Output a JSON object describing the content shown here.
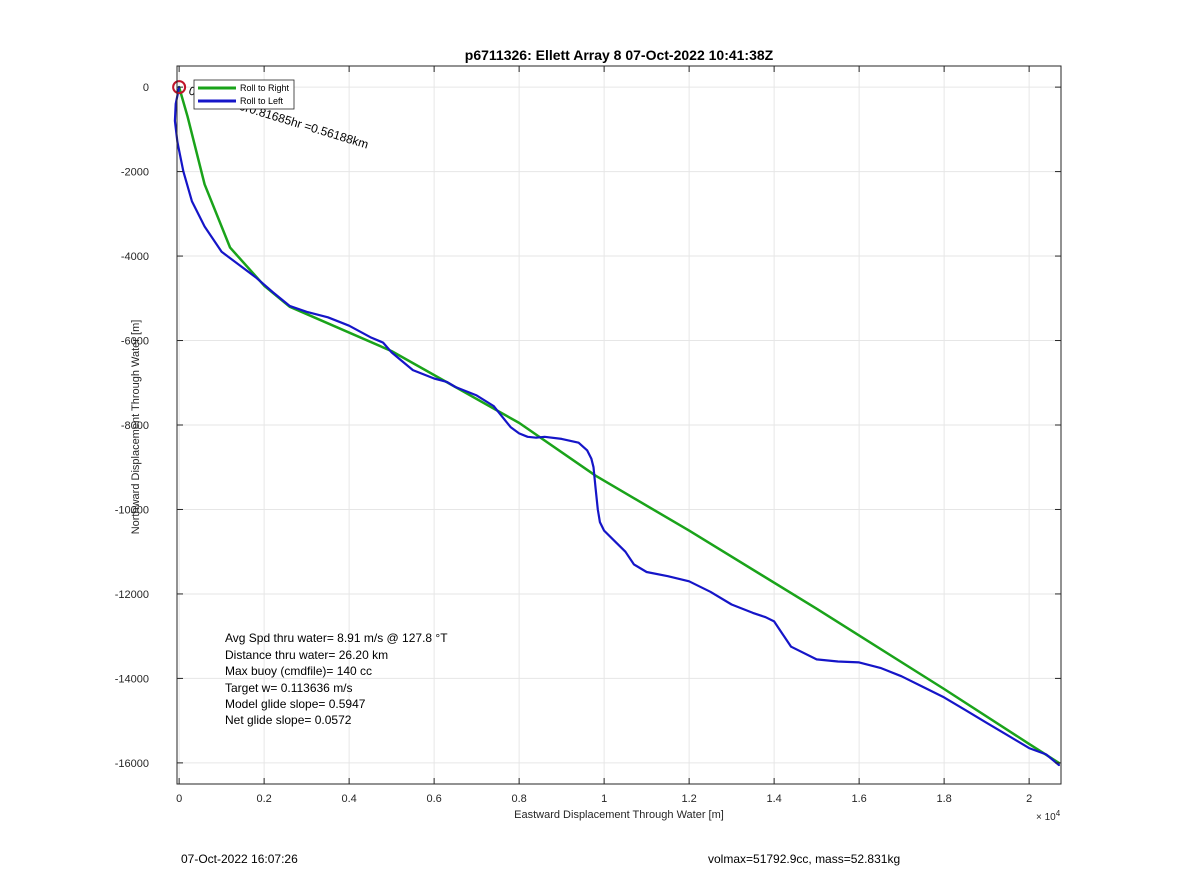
{
  "chart_data": {
    "type": "line",
    "title": "p6711326: Ellett Array 8 07-Oct-2022 10:41:38Z",
    "xlabel": "Eastward Displacement Through Water [m]",
    "ylabel": "Northward Displacement Through Water [m]",
    "x_exponent_label": "× 10",
    "x_exponent_power": "4",
    "xlim": [
      -0.005,
      2.075
    ],
    "ylim": [
      -16500,
      500
    ],
    "x_scale_note": "x values in units of 10^4 m",
    "xticks": [
      0,
      0.2,
      0.4,
      0.6,
      0.8,
      1,
      1.2,
      1.4,
      1.6,
      1.8,
      2
    ],
    "xtick_labels": [
      "0",
      "0.2",
      "0.4",
      "0.6",
      "0.8",
      "1",
      "1.2",
      "1.4",
      "1.6",
      "1.8",
      "2"
    ],
    "yticks": [
      0,
      -2000,
      -4000,
      -6000,
      -8000,
      -10000,
      -12000,
      -14000,
      -16000
    ],
    "ytick_labels": [
      "0",
      "-2000",
      "-4000",
      "-6000",
      "-8000",
      "-10000",
      "-12000",
      "-14000",
      "-16000"
    ],
    "grid": true,
    "legend_position": "top-left",
    "series": [
      {
        "name": "Roll to Right",
        "color": "#1aa31a",
        "x": [
          0.0,
          0.02,
          0.06,
          0.12,
          0.2,
          0.26,
          0.5,
          0.8,
          0.98,
          1.2,
          1.5,
          1.8,
          2.0,
          2.07
        ],
        "y": [
          0,
          -700,
          -2300,
          -3800,
          -4700,
          -5200,
          -6250,
          -7950,
          -9200,
          -10500,
          -12350,
          -14250,
          -15550,
          -16000
        ]
      },
      {
        "name": "Roll to Left",
        "color": "#1515c8",
        "x": [
          0.0,
          -0.008,
          -0.01,
          -0.004,
          0.01,
          0.03,
          0.06,
          0.1,
          0.14,
          0.18,
          0.22,
          0.26,
          0.3,
          0.35,
          0.4,
          0.45,
          0.48,
          0.5,
          0.52,
          0.55,
          0.6,
          0.63,
          0.65,
          0.7,
          0.74,
          0.76,
          0.78,
          0.8,
          0.82,
          0.84,
          0.86,
          0.9,
          0.94,
          0.96,
          0.97,
          0.975,
          0.98,
          0.985,
          0.99,
          1.0,
          1.03,
          1.05,
          1.07,
          1.1,
          1.15,
          1.2,
          1.25,
          1.3,
          1.35,
          1.38,
          1.4,
          1.42,
          1.44,
          1.5,
          1.55,
          1.6,
          1.65,
          1.7,
          1.75,
          1.8,
          1.85,
          1.9,
          1.95,
          2.0,
          2.04,
          2.07
        ],
        "y": [
          0,
          -400,
          -800,
          -1300,
          -2000,
          -2700,
          -3300,
          -3900,
          -4200,
          -4500,
          -4850,
          -5180,
          -5320,
          -5450,
          -5650,
          -5920,
          -6050,
          -6280,
          -6450,
          -6700,
          -6900,
          -6980,
          -7100,
          -7300,
          -7550,
          -7800,
          -8050,
          -8200,
          -8280,
          -8300,
          -8280,
          -8330,
          -8420,
          -8600,
          -8800,
          -9000,
          -9500,
          -10000,
          -10300,
          -10500,
          -10800,
          -11000,
          -11300,
          -11480,
          -11580,
          -11700,
          -11950,
          -12250,
          -12450,
          -12550,
          -12650,
          -12950,
          -13250,
          -13550,
          -13600,
          -13620,
          -13750,
          -13950,
          -14200,
          -14450,
          -14750,
          -15050,
          -15350,
          -15650,
          -15800,
          -16050
        ]
      }
    ],
    "start_marker": {
      "x": 0,
      "y": 0,
      "color": "#c0142a"
    },
    "annotation": "0.16 m/s for0.81685hr =0.56188km",
    "stats": [
      "Avg Spd thru water=  8.91 m/s @ 127.8 °T",
      "Distance thru water= 26.20 km",
      "Max buoy (cmdfile)= 140 cc",
      "Target w= 0.113636 m/s",
      "Model glide slope= 0.5947",
      "Net glide slope= 0.0572"
    ]
  },
  "footer": {
    "timestamp": "07-Oct-2022 16:07:26",
    "summary": "volmax=51792.9cc, mass=52.831kg"
  }
}
